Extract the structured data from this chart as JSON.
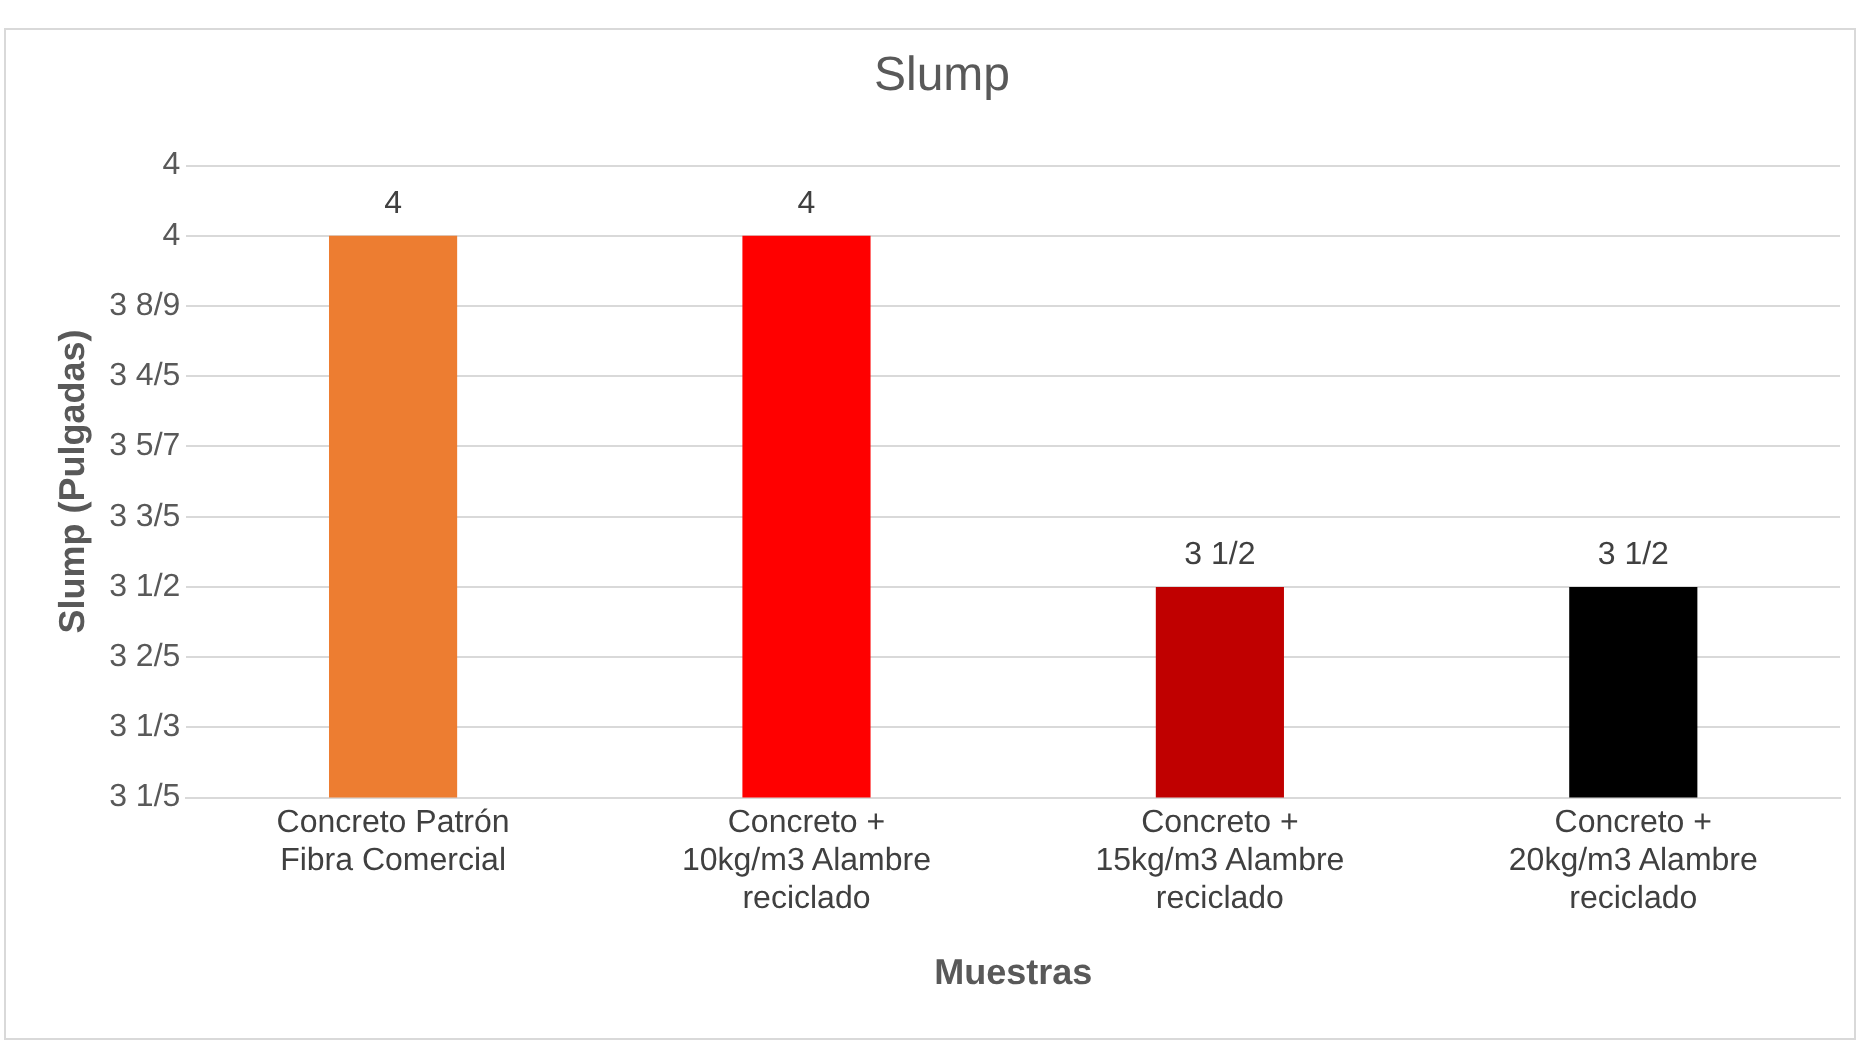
{
  "chart_data": {
    "type": "bar",
    "title": "Slump",
    "xlabel": "Muestras",
    "ylabel": "Slump (Pulgadas)",
    "categories": [
      "Concreto Patrón Fibra Comercial",
      "Concreto + 10kg/m3 Alambre reciclado",
      "Concreto + 15kg/m3 Alambre reciclado",
      "Concreto + 20kg/m3 Alambre reciclado"
    ],
    "values": [
      4,
      4,
      3.5,
      3.5
    ],
    "colors": [
      "#ed7d31",
      "#ff0000",
      "#c00000",
      "#000000"
    ],
    "value_labels": [
      "4",
      "4",
      "3 1/2",
      "3 1/2"
    ],
    "ylim": [
      3.2,
      4.1
    ],
    "yticks": [
      {
        "value": 3.2,
        "label": "3 1/5"
      },
      {
        "value": 3.3,
        "label": "3 1/3"
      },
      {
        "value": 3.4,
        "label": "3 2/5"
      },
      {
        "value": 3.5,
        "label": "3 1/2"
      },
      {
        "value": 3.6,
        "label": "3 3/5"
      },
      {
        "value": 3.7,
        "label": "3 5/7"
      },
      {
        "value": 3.8,
        "label": "3 4/5"
      },
      {
        "value": 3.9,
        "label": "3 8/9"
      },
      {
        "value": 4.0,
        "label": "4"
      },
      {
        "value": 4.1,
        "label": "4"
      }
    ],
    "grid": "y",
    "legend": false
  }
}
